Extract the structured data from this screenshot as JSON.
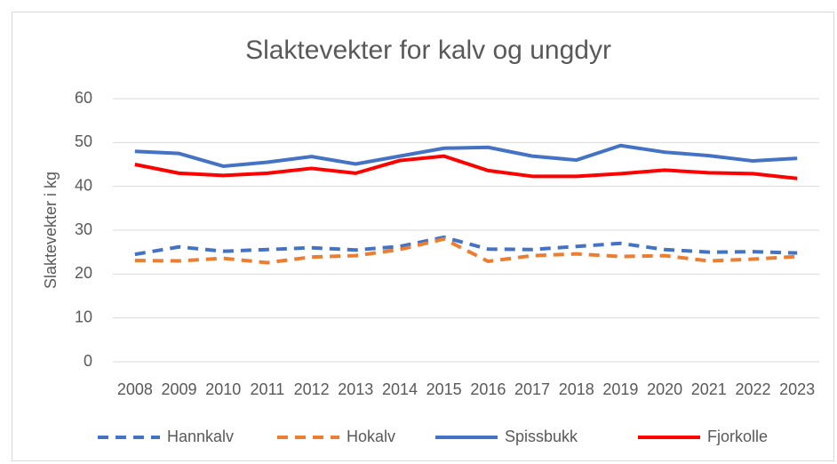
{
  "chart_data": {
    "type": "line",
    "title": "Slaktevekter for kalv og ungdyr",
    "y_label": "Slaktevekter i kg",
    "categories": [
      "2008",
      "2009",
      "2010",
      "2011",
      "2012",
      "2013",
      "2014",
      "2015",
      "2016",
      "2017",
      "2018",
      "2019",
      "2020",
      "2021",
      "2022",
      "2023"
    ],
    "series": [
      {
        "name": "Hannkalv",
        "color": "#4472c4",
        "dashed": true,
        "values": [
          24.5,
          26.2,
          25.2,
          25.6,
          26.0,
          25.5,
          26.3,
          28.4,
          25.7,
          25.6,
          26.3,
          27.0,
          25.6,
          25.0,
          25.1,
          24.8
        ]
      },
      {
        "name": "Hokalv",
        "color": "#ed7d31",
        "dashed": true,
        "values": [
          23.1,
          23.0,
          23.6,
          22.6,
          23.9,
          24.2,
          25.6,
          28.0,
          22.9,
          24.2,
          24.6,
          24.0,
          24.2,
          23.0,
          23.4,
          24.0
        ]
      },
      {
        "name": "Spissbukk",
        "color": "#4472c4",
        "dashed": false,
        "values": [
          48.0,
          47.5,
          44.6,
          45.5,
          46.8,
          45.1,
          46.9,
          48.7,
          48.9,
          46.9,
          46.0,
          49.3,
          47.8,
          47.0,
          45.8,
          46.4
        ]
      },
      {
        "name": "Fjorkolle",
        "color": "#ff0000",
        "dashed": false,
        "values": [
          45.0,
          43.0,
          42.5,
          43.0,
          44.1,
          43.0,
          45.9,
          46.9,
          43.6,
          42.3,
          42.3,
          42.9,
          43.7,
          43.1,
          42.9,
          41.8
        ]
      }
    ],
    "ylim": [
      0,
      60
    ],
    "yticks": [
      0,
      10,
      20,
      30,
      40,
      50,
      60
    ],
    "grid": true,
    "legend": "bottom"
  }
}
